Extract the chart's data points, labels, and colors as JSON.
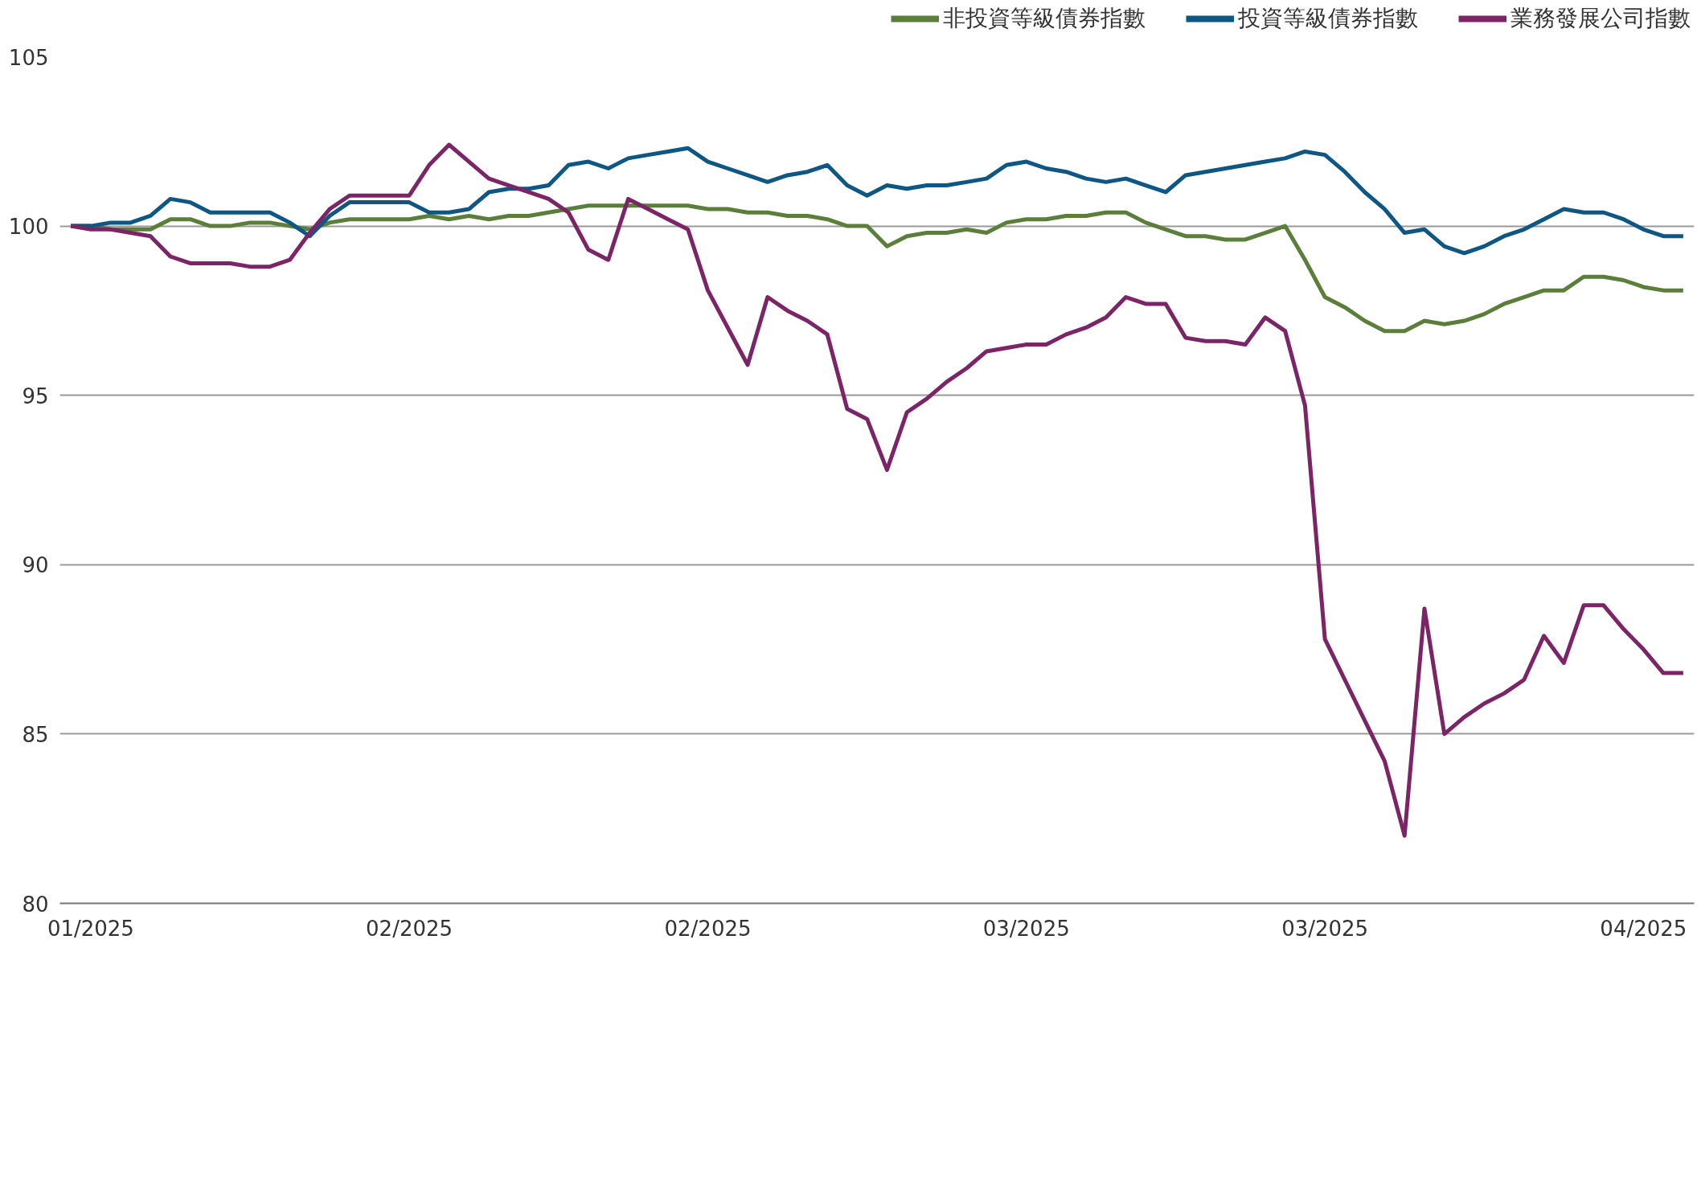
{
  "chart_data": {
    "type": "line",
    "categories": [
      null,
      "01/2025",
      null,
      null,
      null,
      null,
      null,
      null,
      null,
      null,
      null,
      null,
      null,
      null,
      null,
      null,
      null,
      "02/2025",
      null,
      null,
      null,
      null,
      null,
      null,
      null,
      null,
      null,
      null,
      null,
      null,
      null,
      null,
      "02/2025",
      null,
      null,
      null,
      null,
      null,
      null,
      null,
      null,
      null,
      null,
      null,
      null,
      null,
      null,
      null,
      "03/2025",
      null,
      null,
      null,
      null,
      null,
      null,
      null,
      null,
      null,
      null,
      null,
      null,
      null,
      null,
      "03/2025",
      null,
      null,
      null,
      null,
      null,
      null,
      null,
      null,
      null,
      null,
      null,
      null,
      null,
      null,
      null,
      "04/2025",
      null,
      null
    ],
    "ylim": [
      80,
      105
    ],
    "yticks": [
      80,
      85,
      90,
      95,
      100,
      105
    ],
    "grid": "y",
    "legend": "top right",
    "series": [
      {
        "name": "非投資等級債券指數",
        "color": "#5b7f3a",
        "values": [
          100,
          100.0,
          99.9,
          99.9,
          99.9,
          100.2,
          100.2,
          100.0,
          100.0,
          100.1,
          100.1,
          100.0,
          99.9,
          100.1,
          100.2,
          100.2,
          100.2,
          100.2,
          100.3,
          100.2,
          100.3,
          100.2,
          100.3,
          100.3,
          100.4,
          100.5,
          100.6,
          100.6,
          100.6,
          100.6,
          100.6,
          100.6,
          100.5,
          100.5,
          100.4,
          100.4,
          100.3,
          100.3,
          100.2,
          100.0,
          100.0,
          99.4,
          99.7,
          99.8,
          99.8,
          99.9,
          99.8,
          100.1,
          100.2,
          100.2,
          100.3,
          100.3,
          100.4,
          100.4,
          100.1,
          99.9,
          99.7,
          99.7,
          99.6,
          99.6,
          99.8,
          100.0,
          99.0,
          97.9,
          97.6,
          97.2,
          96.9,
          96.9,
          97.2,
          97.1,
          97.2,
          97.4,
          97.7,
          97.9,
          98.1,
          98.1,
          98.5,
          98.5,
          98.4,
          98.2,
          98.1,
          98.1
        ]
      },
      {
        "name": "投資等級債券指數",
        "color": "#0e5683",
        "values": [
          100,
          100.0,
          100.1,
          100.1,
          100.3,
          100.8,
          100.7,
          100.4,
          100.4,
          100.4,
          100.4,
          100.1,
          99.7,
          100.3,
          100.7,
          100.7,
          100.7,
          100.7,
          100.4,
          100.4,
          100.5,
          101.0,
          101.1,
          101.1,
          101.2,
          101.8,
          101.9,
          101.7,
          102.0,
          102.1,
          102.2,
          102.3,
          101.9,
          101.7,
          101.5,
          101.3,
          101.5,
          101.6,
          101.8,
          101.2,
          100.9,
          101.2,
          101.1,
          101.2,
          101.2,
          101.3,
          101.4,
          101.8,
          101.9,
          101.7,
          101.6,
          101.4,
          101.3,
          101.4,
          101.2,
          101.0,
          101.5,
          101.6,
          101.7,
          101.8,
          101.9,
          102.0,
          102.2,
          102.1,
          101.6,
          101.0,
          100.5,
          99.8,
          99.9,
          99.4,
          99.2,
          99.4,
          99.7,
          99.9,
          100.2,
          100.5,
          100.4,
          100.4,
          100.2,
          99.9,
          99.7,
          99.7
        ]
      },
      {
        "name": "業務發展公司指數",
        "color": "#7c2566",
        "values": [
          100,
          99.9,
          99.9,
          99.8,
          99.7,
          99.1,
          98.9,
          98.9,
          98.9,
          98.8,
          98.8,
          99.0,
          99.8,
          100.5,
          100.9,
          100.9,
          100.9,
          100.9,
          101.8,
          102.4,
          101.9,
          101.4,
          101.2,
          101.0,
          100.8,
          100.4,
          99.3,
          99.0,
          100.8,
          100.5,
          100.2,
          99.9,
          98.1,
          97.0,
          95.9,
          97.9,
          97.5,
          97.2,
          96.8,
          94.6,
          94.3,
          92.8,
          94.5,
          94.9,
          95.4,
          95.8,
          96.3,
          96.4,
          96.5,
          96.5,
          96.8,
          97.0,
          97.3,
          97.9,
          97.7,
          97.7,
          96.7,
          96.6,
          96.6,
          96.5,
          97.3,
          96.9,
          94.7,
          87.8,
          86.6,
          85.4,
          84.2,
          82.0,
          88.7,
          85.0,
          85.5,
          85.9,
          86.2,
          86.6,
          87.9,
          87.1,
          88.8,
          88.8,
          88.1,
          87.5,
          86.8,
          86.8
        ]
      }
    ]
  }
}
